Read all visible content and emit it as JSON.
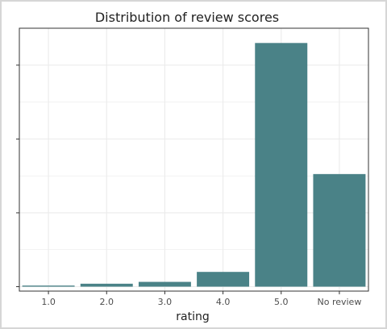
{
  "chart_data": {
    "type": "bar",
    "title": "Distribution of review scores",
    "xlabel": "rating",
    "ylabel": "",
    "categories": [
      "1.0",
      "2.0",
      "3.0",
      "4.0",
      "5.0",
      "No review"
    ],
    "values": [
      0.3,
      0.8,
      1.3,
      4.0,
      66.0,
      30.5
    ],
    "ylim": [
      -1.2,
      70.0
    ],
    "ytick_values": [
      0,
      20,
      40,
      60
    ],
    "y_tick_labels_visible": false,
    "grid": true,
    "legend": "none",
    "bar_color": "#4a8287",
    "grid_color": "#ebebeb",
    "panel_border_color": "#333333"
  }
}
